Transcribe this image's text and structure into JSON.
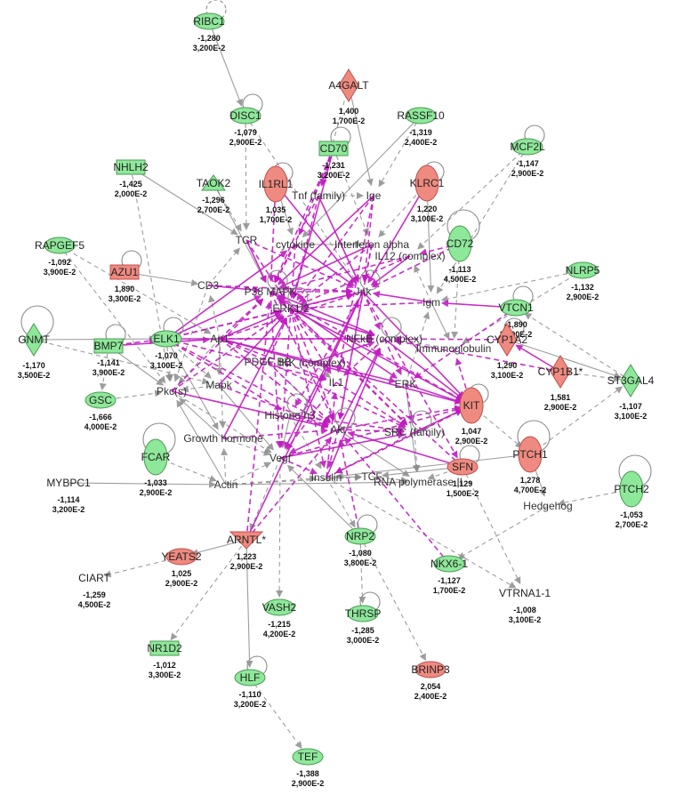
{
  "colors": {
    "up": "#ef8a80",
    "down": "#8ee89a",
    "up_stroke": "#c0504d",
    "down_stroke": "#4c9a55",
    "edge_gray": "#8c8c8c",
    "edge_magenta": "#c21ac2"
  },
  "molecules": [
    {
      "id": "RIBC1",
      "label": "RIBC1",
      "fold": "-1,280",
      "pval": "3,200E-2",
      "reg": "down",
      "shape": "ellipse"
    },
    {
      "id": "A4GALT",
      "label": "A4GALT",
      "fold": "1,400",
      "pval": "1,700E-2",
      "reg": "up",
      "shape": "diamond"
    },
    {
      "id": "DISC1",
      "label": "DISC1",
      "fold": "-1,079",
      "pval": "2,900E-2",
      "reg": "down",
      "shape": "ellipse"
    },
    {
      "id": "RASSF10",
      "label": "RASSF10",
      "fold": "-1,319",
      "pval": "2,400E-2",
      "reg": "down",
      "shape": "ellipse"
    },
    {
      "id": "CD70",
      "label": "CD70",
      "fold": "-1,231",
      "pval": "3,200E-2",
      "reg": "down",
      "shape": "rect"
    },
    {
      "id": "MCF2L",
      "label": "MCF2L",
      "fold": "-1,147",
      "pval": "2,900E-2",
      "reg": "down",
      "shape": "ellipse"
    },
    {
      "id": "NHLH2",
      "label": "NHLH2",
      "fold": "-1,425",
      "pval": "2,000E-2",
      "reg": "down",
      "shape": "rect"
    },
    {
      "id": "TAOK2",
      "label": "TAOK2",
      "fold": "-1,296",
      "pval": "2,700E-2",
      "reg": "down",
      "shape": "triangle"
    },
    {
      "id": "IL1RL1",
      "label": "IL1RL1",
      "fold": "1,035",
      "pval": "1,700E-2",
      "reg": "up",
      "shape": "vellipse"
    },
    {
      "id": "KLRC1",
      "label": "KLRC1",
      "fold": "1,220",
      "pval": "3,100E-2",
      "reg": "up",
      "shape": "vellipse"
    },
    {
      "id": "CD72",
      "label": "CD72",
      "fold": "-1,113",
      "pval": "4,500E-2",
      "reg": "down",
      "shape": "vellipse"
    },
    {
      "id": "RAPGEF5",
      "label": "RAPGEF5",
      "fold": "-1,092",
      "pval": "3,900E-2",
      "reg": "down",
      "shape": "ellipse"
    },
    {
      "id": "AZU1",
      "label": "AZU1",
      "fold": "1,890",
      "pval": "3,300E-2",
      "reg": "up",
      "shape": "rect"
    },
    {
      "id": "VTCN1",
      "label": "VTCN1",
      "fold": "-1,890",
      "pval": "3,200E-2",
      "reg": "down",
      "shape": "ellipse"
    },
    {
      "id": "NLRP5",
      "label": "NLRP5",
      "fold": "-1,132",
      "pval": "2,900E-2",
      "reg": "down",
      "shape": "ellipse"
    },
    {
      "id": "GNMT",
      "label": "GNMT",
      "fold": "-1,170",
      "pval": "3,500E-2",
      "reg": "down",
      "shape": "diamond"
    },
    {
      "id": "BMP7",
      "label": "BMP7",
      "fold": "-1,141",
      "pval": "3,900E-2",
      "reg": "down",
      "shape": "rect"
    },
    {
      "id": "ELK1",
      "label": "ELK1",
      "fold": "-1,070",
      "pval": "3,100E-2",
      "reg": "down",
      "shape": "ellipse"
    },
    {
      "id": "CYP1A2",
      "label": "CYP1A2",
      "fold": "1,290",
      "pval": "3,100E-2",
      "reg": "up",
      "shape": "diamond"
    },
    {
      "id": "CYP1B1",
      "label": "CYP1B1*",
      "fold": "1,581",
      "pval": "2,900E-2",
      "reg": "up",
      "shape": "diamond"
    },
    {
      "id": "ST3GAL4",
      "label": "ST3GAL4",
      "fold": "-1,107",
      "pval": "3,100E-2",
      "reg": "down",
      "shape": "diamond"
    },
    {
      "id": "GSC",
      "label": "GSC",
      "fold": "-1,666",
      "pval": "4,000E-2",
      "reg": "down",
      "shape": "ellipse"
    },
    {
      "id": "KIT",
      "label": "KIT",
      "fold": "1,047",
      "pval": "2,900E-2",
      "reg": "up",
      "shape": "vellipse"
    },
    {
      "id": "FCAR",
      "label": "FCAR",
      "fold": "-1,033",
      "pval": "2,900E-2",
      "reg": "down",
      "shape": "vellipse"
    },
    {
      "id": "PTCH1",
      "label": "PTCH1",
      "fold": "1,278",
      "pval": "4,700E-2",
      "reg": "up",
      "shape": "vellipse"
    },
    {
      "id": "MYBPC1",
      "label": "MYBPC1",
      "fold": "-1,114",
      "pval": "3,200E-2",
      "reg": "down",
      "shape": "none"
    },
    {
      "id": "SFN",
      "label": "SFN",
      "fold": "1,129",
      "pval": "1,500E-2",
      "reg": "up",
      "shape": "ellipse"
    },
    {
      "id": "PTCH2",
      "label": "PTCH2",
      "fold": "-1,053",
      "pval": "2,700E-2",
      "reg": "down",
      "shape": "vellipse"
    },
    {
      "id": "ARNTL",
      "label": "ARNTL*",
      "fold": "1,223",
      "pval": "2,900E-2",
      "reg": "up",
      "shape": "triangle_down"
    },
    {
      "id": "YEATS2",
      "label": "YEATS2",
      "fold": "1,025",
      "pval": "2,900E-2",
      "reg": "up",
      "shape": "ellipse"
    },
    {
      "id": "NRP2",
      "label": "NRP2",
      "fold": "-1,080",
      "pval": "3,800E-2",
      "reg": "down",
      "shape": "ellipse"
    },
    {
      "id": "NKX6-1",
      "label": "NKX6-1",
      "fold": "-1,127",
      "pval": "1,700E-2",
      "reg": "down",
      "shape": "ellipse"
    },
    {
      "id": "CIART",
      "label": "CIART",
      "fold": "-1,259",
      "pval": "4,500E-2",
      "reg": "down",
      "shape": "none"
    },
    {
      "id": "VTRNA1-1",
      "label": "VTRNA1-1",
      "fold": "-1,008",
      "pval": "3,100E-2",
      "reg": "down",
      "shape": "none"
    },
    {
      "id": "VASH2",
      "label": "VASH2",
      "fold": "-1,215",
      "pval": "4,200E-2",
      "reg": "down",
      "shape": "ellipse"
    },
    {
      "id": "THRSP",
      "label": "THRSP",
      "fold": "-1,285",
      "pval": "3,000E-2",
      "reg": "down",
      "shape": "ellipse"
    },
    {
      "id": "NR1D2",
      "label": "NR1D2",
      "fold": "-1,012",
      "pval": "3,300E-2",
      "reg": "down",
      "shape": "rect"
    },
    {
      "id": "BRINP3",
      "label": "BRINP3",
      "fold": "2,054",
      "pval": "2,400E-2",
      "reg": "up",
      "shape": "ellipse"
    },
    {
      "id": "HLF",
      "label": "HLF",
      "fold": "-1,110",
      "pval": "3,200E-2",
      "reg": "down",
      "shape": "ellipse"
    },
    {
      "id": "TEF",
      "label": "TEF",
      "fold": "-1,388",
      "pval": "2,900E-2",
      "reg": "down",
      "shape": "ellipse"
    }
  ],
  "hubs": [
    {
      "id": "TnfFamily",
      "label": "Tnf (family)"
    },
    {
      "id": "Ige",
      "label": "Ige"
    },
    {
      "id": "TCR",
      "label": "TCR"
    },
    {
      "id": "Cytokine",
      "label": "cytokine"
    },
    {
      "id": "IFNa",
      "label": "Interferon alpha"
    },
    {
      "id": "IL12",
      "label": "IL12 (complex)"
    },
    {
      "id": "CD3",
      "label": "CD3"
    },
    {
      "id": "P38",
      "label": "P38 MAPK"
    },
    {
      "id": "Jnk",
      "label": "Jnk"
    },
    {
      "id": "ERK12",
      "label": "ERK1/2"
    },
    {
      "id": "Igm",
      "label": "Igm"
    },
    {
      "id": "Ap1",
      "label": "Ap1"
    },
    {
      "id": "NFkB",
      "label": "NFkB (complex)"
    },
    {
      "id": "Immunoglobulin",
      "label": "Immunoglobulin"
    },
    {
      "id": "PDGFBB",
      "label": "PDGF BB"
    },
    {
      "id": "IKK",
      "label": "IKK (complex)"
    },
    {
      "id": "Mapk",
      "label": "Mapk"
    },
    {
      "id": "Pkcs",
      "label": "Pkc(s)"
    },
    {
      "id": "IL1",
      "label": "IL1"
    },
    {
      "id": "ERK",
      "label": "ERK"
    },
    {
      "id": "Histone",
      "label": "Histone h3"
    },
    {
      "id": "Akt",
      "label": "Akt"
    },
    {
      "id": "SRC",
      "label": "SRC (family)"
    },
    {
      "id": "GH",
      "label": "Growth hormone"
    },
    {
      "id": "Vegf",
      "label": "Vegf"
    },
    {
      "id": "Insulin",
      "label": "Insulin"
    },
    {
      "id": "TCF",
      "label": "TCF"
    },
    {
      "id": "RNApol",
      "label": "RNA polymerase II"
    },
    {
      "id": "Actin",
      "label": "Actin"
    },
    {
      "id": "Hedgehog",
      "label": "Hedgehog"
    }
  ]
}
